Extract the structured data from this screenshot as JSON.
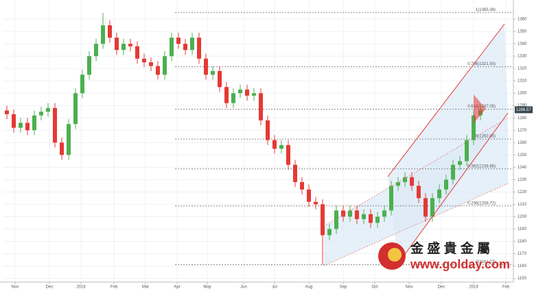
{
  "chart_data": {
    "type": "candlestick",
    "up_color": "#4caf50",
    "down_color": "#e53935",
    "grid": true,
    "xlim": [
      0,
      74.3
    ],
    "xticks": [
      {
        "value": 1.7,
        "label": "Nov"
      },
      {
        "value": 6.7,
        "label": "Dec"
      },
      {
        "value": 11.3,
        "label": "2018"
      },
      {
        "value": 16.1,
        "label": "Feb"
      },
      {
        "value": 20.7,
        "label": "Mar"
      },
      {
        "value": 25.3,
        "label": "Apr"
      },
      {
        "value": 29.7,
        "label": "May"
      },
      {
        "value": 35,
        "label": "Jun"
      },
      {
        "value": 39.5,
        "label": "Jul"
      },
      {
        "value": 44.5,
        "label": "Aug"
      },
      {
        "value": 49.5,
        "label": "Sep"
      },
      {
        "value": 54.1,
        "label": "Oct"
      },
      {
        "value": 59.1,
        "label": "Nov"
      },
      {
        "value": 63.8,
        "label": "Dec"
      },
      {
        "value": 68.5,
        "label": "2019"
      },
      {
        "value": 73.2,
        "label": "Feb"
      }
    ],
    "ylim": [
      1147,
      1375.5
    ],
    "yticks": [
      1150,
      1160,
      1170,
      1180,
      1190,
      1200,
      1210,
      1220,
      1230,
      1240,
      1250,
      1260,
      1270,
      1280,
      1290,
      1300,
      1310,
      1320,
      1330,
      1340,
      1350,
      1360
    ],
    "open": [
      1286,
      1283,
      1272,
      1276,
      1270,
      1282,
      1285,
      1288,
      1260,
      1250,
      1275,
      1300,
      1315,
      1330,
      1340,
      1355,
      1345,
      1335,
      1340,
      1338,
      1328,
      1325,
      1322,
      1315,
      1330,
      1345,
      1340,
      1335,
      1345,
      1328,
      1315,
      1318,
      1305,
      1292,
      1300,
      1303,
      1298,
      1300,
      1278,
      1262,
      1255,
      1258,
      1242,
      1228,
      1222,
      1212,
      1210,
      1185,
      1190,
      1205,
      1200,
      1205,
      1198,
      1202,
      1195,
      1200,
      1205,
      1225,
      1228,
      1232,
      1225,
      1215,
      1200,
      1215,
      1222,
      1230,
      1242,
      1245,
      1262,
      1282
    ],
    "high": [
      1290,
      1287,
      1280,
      1280,
      1286,
      1289,
      1292,
      1292,
      1264,
      1279,
      1304,
      1319,
      1334,
      1344,
      1365,
      1359,
      1349,
      1344,
      1344,
      1342,
      1332,
      1329,
      1326,
      1334,
      1349,
      1349,
      1344,
      1349,
      1349,
      1332,
      1322,
      1322,
      1309,
      1304,
      1307,
      1307,
      1304,
      1304,
      1282,
      1266,
      1262,
      1262,
      1246,
      1232,
      1226,
      1216,
      1214,
      1194,
      1209,
      1209,
      1209,
      1209,
      1206,
      1206,
      1204,
      1209,
      1229,
      1232,
      1236,
      1236,
      1229,
      1219,
      1219,
      1226,
      1234,
      1246,
      1249,
      1266,
      1286,
      1291
    ],
    "low": [
      1279,
      1268,
      1268,
      1266,
      1266,
      1278,
      1281,
      1256,
      1246,
      1246,
      1271,
      1296,
      1311,
      1326,
      1336,
      1341,
      1331,
      1331,
      1334,
      1324,
      1321,
      1318,
      1311,
      1311,
      1326,
      1336,
      1331,
      1331,
      1324,
      1311,
      1311,
      1301,
      1288,
      1288,
      1296,
      1294,
      1294,
      1274,
      1258,
      1251,
      1251,
      1238,
      1224,
      1218,
      1208,
      1206,
      1161,
      1181,
      1186,
      1196,
      1196,
      1194,
      1194,
      1191,
      1191,
      1196,
      1201,
      1221,
      1224,
      1221,
      1211,
      1196,
      1196,
      1211,
      1218,
      1226,
      1238,
      1241,
      1258,
      1278
    ],
    "close": [
      1283,
      1272,
      1276,
      1270,
      1282,
      1285,
      1288,
      1260,
      1250,
      1275,
      1300,
      1315,
      1330,
      1340,
      1355,
      1345,
      1335,
      1340,
      1338,
      1328,
      1325,
      1322,
      1315,
      1330,
      1345,
      1340,
      1335,
      1345,
      1328,
      1315,
      1318,
      1305,
      1292,
      1300,
      1303,
      1298,
      1300,
      1278,
      1262,
      1255,
      1258,
      1242,
      1228,
      1222,
      1212,
      1210,
      1185,
      1190,
      1205,
      1200,
      1205,
      1198,
      1202,
      1195,
      1200,
      1205,
      1225,
      1228,
      1232,
      1225,
      1215,
      1200,
      1215,
      1222,
      1230,
      1242,
      1245,
      1262,
      1282,
      1286.57
    ],
    "fib_levels": [
      {
        "value": 1365.38,
        "label": "1(1365.38)"
      },
      {
        "value": 1321.5,
        "label": "0.786(1321.50)"
      },
      {
        "value": 1287.05,
        "label": "0.618(1287.05)"
      },
      {
        "value": 1262.85,
        "label": "0.5(1262.85)"
      },
      {
        "value": 1238.66,
        "label": "0.382(1238.66)"
      },
      {
        "value": 1208.72,
        "label": "0.236(1208.72)"
      },
      {
        "value": 1161.07,
        "label": "0(1161.07)"
      }
    ],
    "watermark": {
      "name": "金 盛 貴 金 屬",
      "url": "www.golday.com"
    }
  }
}
